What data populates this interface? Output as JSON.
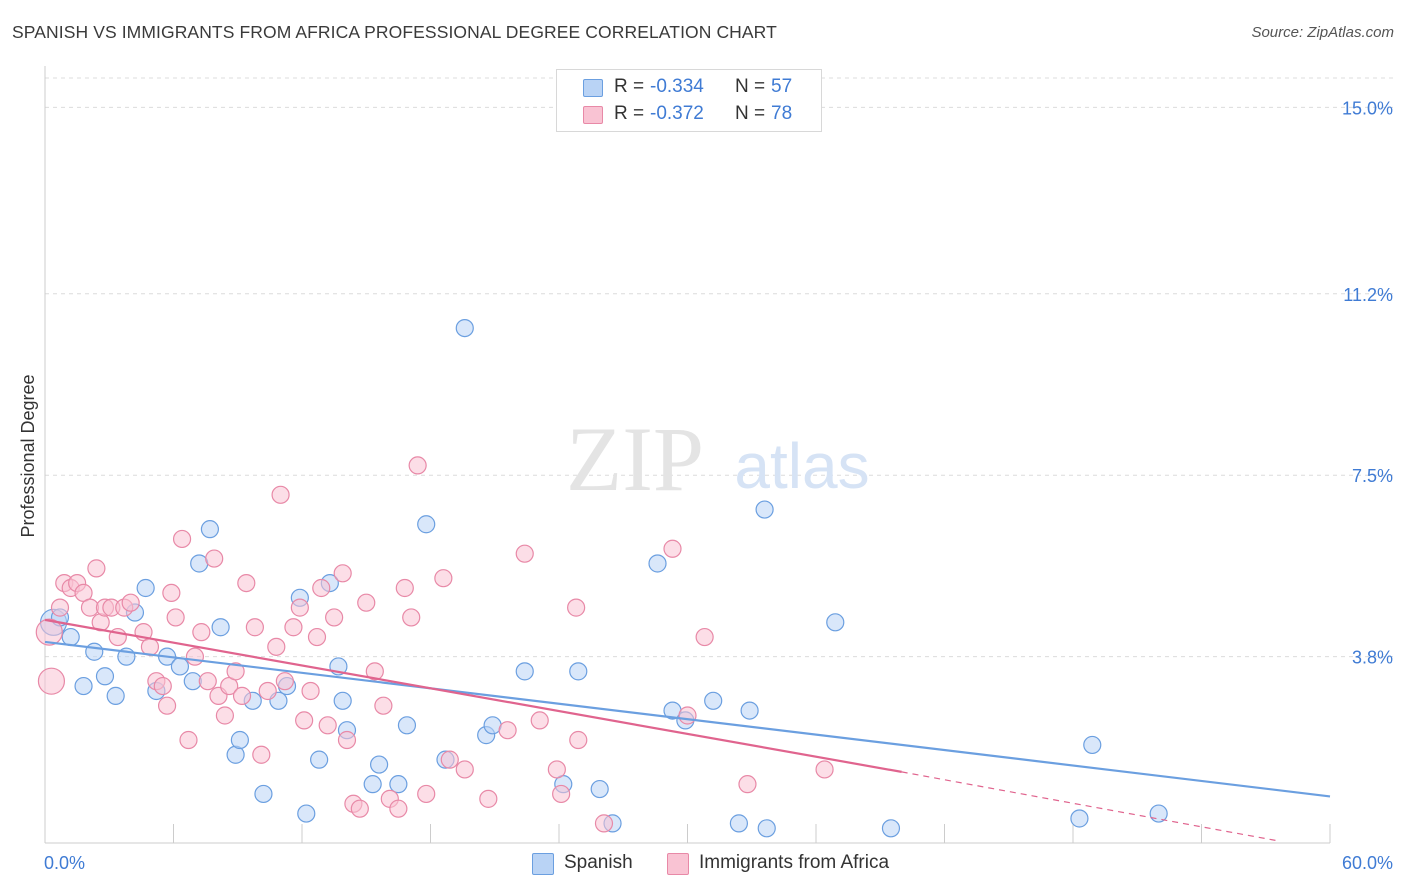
{
  "header": {
    "title": "SPANISH VS IMMIGRANTS FROM AFRICA PROFESSIONAL DEGREE CORRELATION CHART",
    "source": "Source: ZipAtlas.com"
  },
  "watermark": {
    "zip": "ZIP",
    "atlas": "atlas"
  },
  "legend": {
    "r_label": "R =",
    "n_label": "N =",
    "series": [
      {
        "name": "Spanish",
        "r": "-0.334",
        "n": "57",
        "fill": "#b9d3f5",
        "stroke": "#6b9fe0"
      },
      {
        "name": "Immigrants from Africa",
        "r": "-0.372",
        "n": "78",
        "fill": "#f9c3d3",
        "stroke": "#e889a7"
      }
    ]
  },
  "chart_data": {
    "type": "scatter",
    "title": "SPANISH VS IMMIGRANTS FROM AFRICA PROFESSIONAL DEGREE CORRELATION CHART",
    "xlabel": "",
    "ylabel": "Professional Degree",
    "xlim": [
      0,
      60
    ],
    "ylim": [
      0,
      15.6
    ],
    "x_tick_labels": [
      "0.0%",
      "60.0%"
    ],
    "y_ticks": [
      3.8,
      7.5,
      11.2,
      15.0
    ],
    "y_tick_labels": [
      "3.8%",
      "7.5%",
      "11.2%",
      "15.0%"
    ],
    "grid": true,
    "legend_position": "top-center",
    "series": [
      {
        "name": "Spanish",
        "color": "#6b9fe0",
        "fill": "#b9d3f5",
        "trend": {
          "x": [
            0,
            60
          ],
          "y": [
            4.1,
            0.95
          ]
        },
        "points": [
          [
            0.4,
            4.5
          ],
          [
            0.7,
            4.6
          ],
          [
            1.2,
            4.2
          ],
          [
            1.8,
            3.2
          ],
          [
            2.3,
            3.9
          ],
          [
            2.8,
            3.4
          ],
          [
            3.3,
            3.0
          ],
          [
            3.8,
            3.8
          ],
          [
            4.2,
            4.7
          ],
          [
            4.7,
            5.2
          ],
          [
            5.2,
            3.1
          ],
          [
            5.7,
            3.8
          ],
          [
            6.3,
            3.6
          ],
          [
            6.9,
            3.3
          ],
          [
            7.2,
            5.7
          ],
          [
            7.7,
            6.4
          ],
          [
            8.2,
            4.4
          ],
          [
            8.9,
            1.8
          ],
          [
            9.1,
            2.1
          ],
          [
            9.7,
            2.9
          ],
          [
            10.2,
            1.0
          ],
          [
            10.9,
            2.9
          ],
          [
            11.3,
            3.2
          ],
          [
            11.9,
            5.0
          ],
          [
            12.2,
            0.6
          ],
          [
            12.8,
            1.7
          ],
          [
            13.3,
            5.3
          ],
          [
            13.7,
            3.6
          ],
          [
            13.9,
            2.9
          ],
          [
            14.1,
            2.3
          ],
          [
            15.3,
            1.2
          ],
          [
            15.6,
            1.6
          ],
          [
            16.5,
            1.2
          ],
          [
            16.9,
            2.4
          ],
          [
            17.8,
            6.5
          ],
          [
            18.7,
            1.7
          ],
          [
            19.6,
            10.5
          ],
          [
            20.6,
            2.2
          ],
          [
            20.9,
            2.4
          ],
          [
            22.4,
            3.5
          ],
          [
            24.2,
            1.2
          ],
          [
            24.9,
            3.5
          ],
          [
            25.9,
            1.1
          ],
          [
            26.5,
            0.4
          ],
          [
            28.6,
            5.7
          ],
          [
            29.3,
            2.7
          ],
          [
            29.9,
            2.5
          ],
          [
            31.2,
            2.9
          ],
          [
            32.4,
            0.4
          ],
          [
            32.9,
            2.7
          ],
          [
            33.7,
            0.3
          ],
          [
            33.6,
            6.8
          ],
          [
            36.9,
            4.5
          ],
          [
            39.5,
            0.3
          ],
          [
            48.3,
            0.5
          ],
          [
            48.9,
            2.0
          ],
          [
            52.0,
            0.6
          ]
        ]
      },
      {
        "name": "Immigrants from Africa",
        "color": "#e0648e",
        "fill": "#f9c3d3",
        "trend": {
          "x": [
            0,
            40
          ],
          "y": [
            4.55,
            1.45
          ]
        },
        "trend_dashed": {
          "x": [
            40,
            57.5
          ],
          "y": [
            1.45,
            0.05
          ]
        },
        "points": [
          [
            0.2,
            4.3
          ],
          [
            0.3,
            3.3
          ],
          [
            0.7,
            4.8
          ],
          [
            0.9,
            5.3
          ],
          [
            1.2,
            5.2
          ],
          [
            1.5,
            5.3
          ],
          [
            1.8,
            5.1
          ],
          [
            2.1,
            4.8
          ],
          [
            2.4,
            5.6
          ],
          [
            2.6,
            4.5
          ],
          [
            2.8,
            4.8
          ],
          [
            3.1,
            4.8
          ],
          [
            3.4,
            4.2
          ],
          [
            3.7,
            4.8
          ],
          [
            4.0,
            4.9
          ],
          [
            4.6,
            4.3
          ],
          [
            4.9,
            4.0
          ],
          [
            5.2,
            3.3
          ],
          [
            5.5,
            3.2
          ],
          [
            5.7,
            2.8
          ],
          [
            5.9,
            5.1
          ],
          [
            6.1,
            4.6
          ],
          [
            6.4,
            6.2
          ],
          [
            6.7,
            2.1
          ],
          [
            7.0,
            3.8
          ],
          [
            7.3,
            4.3
          ],
          [
            7.6,
            3.3
          ],
          [
            7.9,
            5.8
          ],
          [
            8.1,
            3.0
          ],
          [
            8.4,
            2.6
          ],
          [
            8.6,
            3.2
          ],
          [
            8.9,
            3.5
          ],
          [
            9.2,
            3.0
          ],
          [
            9.4,
            5.3
          ],
          [
            9.8,
            4.4
          ],
          [
            10.1,
            1.8
          ],
          [
            10.4,
            3.1
          ],
          [
            10.8,
            4.0
          ],
          [
            11.0,
            7.1
          ],
          [
            11.2,
            3.3
          ],
          [
            11.6,
            4.4
          ],
          [
            11.9,
            4.8
          ],
          [
            12.1,
            2.5
          ],
          [
            12.4,
            3.1
          ],
          [
            12.7,
            4.2
          ],
          [
            12.9,
            5.2
          ],
          [
            13.2,
            2.4
          ],
          [
            13.5,
            4.6
          ],
          [
            13.9,
            5.5
          ],
          [
            14.1,
            2.1
          ],
          [
            14.4,
            0.8
          ],
          [
            14.7,
            0.7
          ],
          [
            15.0,
            4.9
          ],
          [
            15.4,
            3.5
          ],
          [
            15.8,
            2.8
          ],
          [
            16.1,
            0.9
          ],
          [
            16.5,
            0.7
          ],
          [
            16.8,
            5.2
          ],
          [
            17.1,
            4.6
          ],
          [
            17.4,
            7.7
          ],
          [
            17.8,
            1.0
          ],
          [
            18.6,
            5.4
          ],
          [
            18.9,
            1.7
          ],
          [
            19.6,
            1.5
          ],
          [
            20.7,
            0.9
          ],
          [
            21.6,
            2.3
          ],
          [
            22.4,
            5.9
          ],
          [
            23.1,
            2.5
          ],
          [
            23.9,
            1.5
          ],
          [
            24.1,
            1.0
          ],
          [
            24.8,
            4.8
          ],
          [
            24.9,
            2.1
          ],
          [
            26.1,
            0.4
          ],
          [
            29.3,
            6.0
          ],
          [
            30.0,
            2.6
          ],
          [
            30.8,
            4.2
          ],
          [
            32.8,
            1.2
          ],
          [
            36.4,
            1.5
          ]
        ]
      }
    ]
  }
}
